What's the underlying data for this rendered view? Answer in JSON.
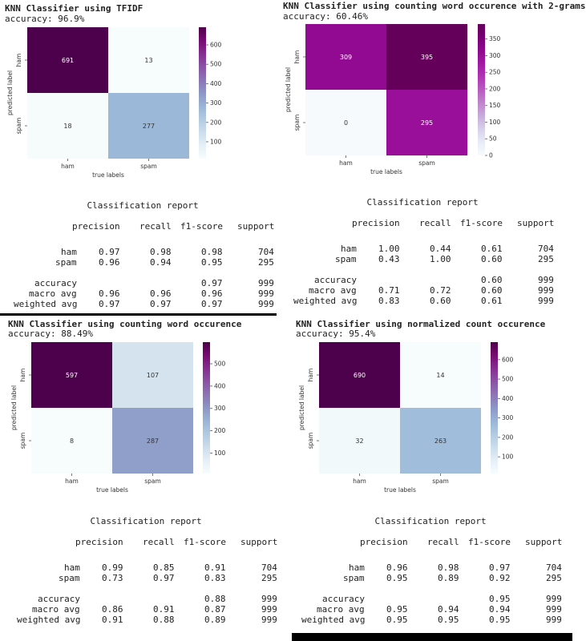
{
  "panels": [
    {
      "title": "KNN Classifier using TFIDF",
      "accuracy": "accuracy: 96.9%",
      "chart_data": {
        "type": "heatmap",
        "xlabel": "true labels",
        "ylabel": "predicted label",
        "categories": [
          "ham",
          "spam"
        ],
        "matrix": [
          [
            691,
            13
          ],
          [
            18,
            277
          ]
        ],
        "colorbar_ticks": [
          100,
          200,
          300,
          400,
          500,
          600
        ],
        "vmin": 13,
        "vmax": 691,
        "cmap": "BuPu"
      },
      "report": {
        "title": "Classification report",
        "headers": [
          "precision",
          "recall",
          "f1-score",
          "support"
        ],
        "rows": [
          {
            "label": "ham",
            "precision": "0.97",
            "recall": "0.98",
            "f1": "0.98",
            "support": "704"
          },
          {
            "label": "spam",
            "precision": "0.96",
            "recall": "0.94",
            "f1": "0.95",
            "support": "295"
          },
          {
            "label": "accuracy",
            "precision": "",
            "recall": "",
            "f1": "0.97",
            "support": "999"
          },
          {
            "label": "macro avg",
            "precision": "0.96",
            "recall": "0.96",
            "f1": "0.96",
            "support": "999"
          },
          {
            "label": "weighted avg",
            "precision": "0.97",
            "recall": "0.97",
            "f1": "0.97",
            "support": "999"
          }
        ]
      }
    },
    {
      "title": "KNN Classifier using counting word occurence with 2-grams",
      "accuracy": "accuracy: 60.46%",
      "chart_data": {
        "type": "heatmap",
        "xlabel": "true labels",
        "ylabel": "predicted label",
        "categories": [
          "ham",
          "spam"
        ],
        "matrix": [
          [
            309,
            395
          ],
          [
            0,
            295
          ]
        ],
        "colorbar_ticks": [
          0,
          50,
          100,
          150,
          200,
          250,
          300,
          350
        ],
        "vmin": 0,
        "vmax": 395,
        "cmap": "PuRd"
      },
      "report": {
        "title": "Classification report",
        "headers": [
          "precision",
          "recall",
          "f1-score",
          "support"
        ],
        "rows": [
          {
            "label": "ham",
            "precision": "1.00",
            "recall": "0.44",
            "f1": "0.61",
            "support": "704"
          },
          {
            "label": "spam",
            "precision": "0.43",
            "recall": "1.00",
            "f1": "0.60",
            "support": "295"
          },
          {
            "label": "accuracy",
            "precision": "",
            "recall": "",
            "f1": "0.60",
            "support": "999"
          },
          {
            "label": "macro avg",
            "precision": "0.71",
            "recall": "0.72",
            "f1": "0.60",
            "support": "999"
          },
          {
            "label": "weighted avg",
            "precision": "0.83",
            "recall": "0.60",
            "f1": "0.61",
            "support": "999"
          }
        ]
      }
    },
    {
      "title": "KNN Classifier using counting word occurence",
      "accuracy": "accuracy: 88.49%",
      "chart_data": {
        "type": "heatmap",
        "xlabel": "true labels",
        "ylabel": "predicted label",
        "categories": [
          "ham",
          "spam"
        ],
        "matrix": [
          [
            597,
            107
          ],
          [
            8,
            287
          ]
        ],
        "colorbar_ticks": [
          100,
          200,
          300,
          400,
          500
        ],
        "vmin": 8,
        "vmax": 597,
        "cmap": "BuPu"
      },
      "report": {
        "title": "Classification report",
        "headers": [
          "precision",
          "recall",
          "f1-score",
          "support"
        ],
        "rows": [
          {
            "label": "ham",
            "precision": "0.99",
            "recall": "0.85",
            "f1": "0.91",
            "support": "704"
          },
          {
            "label": "spam",
            "precision": "0.73",
            "recall": "0.97",
            "f1": "0.83",
            "support": "295"
          },
          {
            "label": "accuracy",
            "precision": "",
            "recall": "",
            "f1": "0.88",
            "support": "999"
          },
          {
            "label": "macro avg",
            "precision": "0.86",
            "recall": "0.91",
            "f1": "0.87",
            "support": "999"
          },
          {
            "label": "weighted avg",
            "precision": "0.91",
            "recall": "0.88",
            "f1": "0.89",
            "support": "999"
          }
        ]
      }
    },
    {
      "title": "KNN Classifier using normalized count occurence",
      "accuracy": "accuracy: 95.4%",
      "chart_data": {
        "type": "heatmap",
        "xlabel": "true labels",
        "ylabel": "predicted label",
        "categories": [
          "ham",
          "spam"
        ],
        "matrix": [
          [
            690,
            14
          ],
          [
            32,
            263
          ]
        ],
        "colorbar_ticks": [
          100,
          200,
          300,
          400,
          500,
          600
        ],
        "vmin": 14,
        "vmax": 690,
        "cmap": "BuPu"
      },
      "report": {
        "title": "Classification report",
        "headers": [
          "precision",
          "recall",
          "f1-score",
          "support"
        ],
        "rows": [
          {
            "label": "ham",
            "precision": "0.96",
            "recall": "0.98",
            "f1": "0.97",
            "support": "704"
          },
          {
            "label": "spam",
            "precision": "0.95",
            "recall": "0.89",
            "f1": "0.92",
            "support": "295"
          },
          {
            "label": "accuracy",
            "precision": "",
            "recall": "",
            "f1": "0.95",
            "support": "999"
          },
          {
            "label": "macro avg",
            "precision": "0.95",
            "recall": "0.94",
            "f1": "0.94",
            "support": "999"
          },
          {
            "label": "weighted avg",
            "precision": "0.95",
            "recall": "0.95",
            "f1": "0.95",
            "support": "999"
          }
        ]
      }
    }
  ]
}
